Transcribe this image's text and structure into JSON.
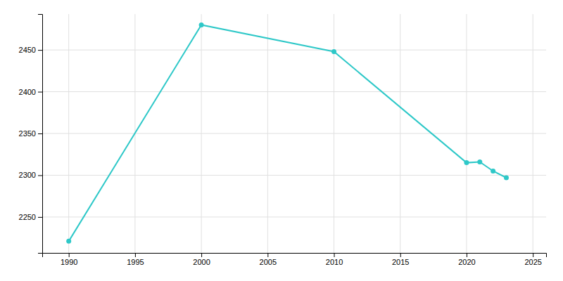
{
  "chart_data": {
    "type": "line",
    "x": [
      1990,
      2000,
      2010,
      2020,
      2021,
      2022,
      2023
    ],
    "values": [
      2221,
      2480,
      2448,
      2315,
      2316,
      2305,
      2297
    ],
    "color": "#2ec8c8",
    "marker": "circle",
    "xlim": [
      1988,
      2026
    ],
    "ylim": [
      2207,
      2493
    ],
    "xticks": [
      1990,
      1995,
      2000,
      2005,
      2010,
      2015,
      2020,
      2025
    ],
    "yticks": [
      2250,
      2300,
      2350,
      2400,
      2450
    ],
    "grid": true
  }
}
